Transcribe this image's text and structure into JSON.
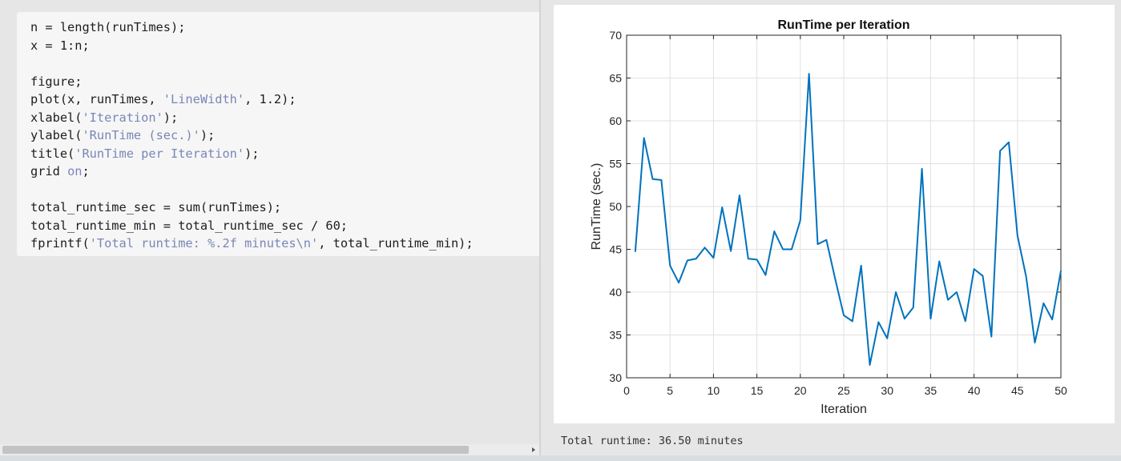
{
  "code": {
    "lines": [
      [
        {
          "t": "n = length(runTimes);",
          "c": "plain"
        }
      ],
      [
        {
          "t": "x = 1:n;",
          "c": "plain"
        }
      ],
      [
        {
          "t": "",
          "c": "plain"
        }
      ],
      [
        {
          "t": "figure;",
          "c": "plain"
        }
      ],
      [
        {
          "t": "plot(x, runTimes, ",
          "c": "plain"
        },
        {
          "t": "'LineWidth'",
          "c": "str"
        },
        {
          "t": ", 1.2);",
          "c": "plain"
        }
      ],
      [
        {
          "t": "xlabel(",
          "c": "plain"
        },
        {
          "t": "'Iteration'",
          "c": "str"
        },
        {
          "t": ");",
          "c": "plain"
        }
      ],
      [
        {
          "t": "ylabel(",
          "c": "plain"
        },
        {
          "t": "'RunTime (sec.)'",
          "c": "str"
        },
        {
          "t": ");",
          "c": "plain"
        }
      ],
      [
        {
          "t": "title(",
          "c": "plain"
        },
        {
          "t": "'RunTime per Iteration'",
          "c": "str"
        },
        {
          "t": ");",
          "c": "plain"
        }
      ],
      [
        {
          "t": "grid ",
          "c": "plain"
        },
        {
          "t": "on",
          "c": "kw"
        },
        {
          "t": ";",
          "c": "plain"
        }
      ],
      [
        {
          "t": "",
          "c": "plain"
        }
      ],
      [
        {
          "t": "total_runtime_sec = sum(runTimes);",
          "c": "plain"
        }
      ],
      [
        {
          "t": "total_runtime_min = total_runtime_sec / 60;",
          "c": "plain"
        }
      ],
      [
        {
          "t": "fprintf(",
          "c": "plain"
        },
        {
          "t": "'Total runtime: %.2f minutes\\n'",
          "c": "str"
        },
        {
          "t": ", total_runtime_min);",
          "c": "plain"
        }
      ]
    ]
  },
  "output": {
    "runtime_text": "Total runtime: 36.50 minutes"
  },
  "colors": {
    "line": "#0072BD",
    "string": "#7a86b8"
  },
  "chart_data": {
    "type": "line",
    "title": "RunTime per Iteration",
    "xlabel": "Iteration",
    "ylabel": "RunTime (sec.)",
    "xlim": [
      0,
      50
    ],
    "ylim": [
      30,
      70
    ],
    "xticks": [
      0,
      5,
      10,
      15,
      20,
      25,
      30,
      35,
      40,
      45,
      50
    ],
    "yticks": [
      30,
      35,
      40,
      45,
      50,
      55,
      60,
      65,
      70
    ],
    "grid": true,
    "x": [
      1,
      2,
      3,
      4,
      5,
      6,
      7,
      8,
      9,
      10,
      11,
      12,
      13,
      14,
      15,
      16,
      17,
      18,
      19,
      20,
      21,
      22,
      23,
      24,
      25,
      26,
      27,
      28,
      29,
      30,
      31,
      32,
      33,
      34,
      35,
      36,
      37,
      38,
      39,
      40,
      41,
      42,
      43,
      44,
      45,
      46,
      47,
      48,
      49,
      50
    ],
    "series": [
      {
        "values": [
          44.7,
          58.0,
          53.2,
          53.1,
          43.1,
          41.1,
          43.7,
          43.9,
          45.2,
          44.0,
          49.9,
          44.8,
          51.3,
          43.9,
          43.8,
          42.0,
          47.1,
          45.0,
          45.0,
          48.4,
          65.5,
          45.6,
          46.1,
          41.6,
          37.3,
          36.6,
          43.1,
          31.5,
          36.5,
          34.6,
          40.0,
          36.9,
          38.2,
          54.4,
          36.9,
          43.6,
          39.1,
          40.0,
          36.6,
          42.7,
          41.9,
          34.8,
          56.5,
          57.5,
          46.6,
          41.8,
          34.1,
          38.7,
          36.8,
          42.5
        ]
      }
    ]
  }
}
